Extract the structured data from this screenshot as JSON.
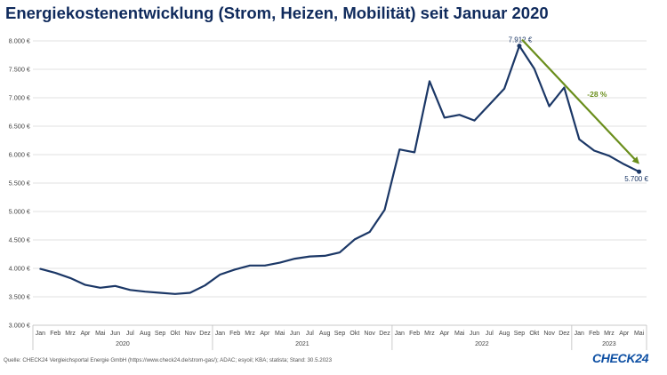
{
  "title": "Energiekostenentwicklung (Strom, Heizen, Mobilität) seit Januar 2020",
  "source": "Quelle: CHECK24 Vergleichsportal Energie GmbH (https://www.check24.de/strom-gas/); ADAC; esyoil; KBA; statista; Stand: 30.5.2023",
  "logo": "CHECK24",
  "colors": {
    "line": "#1b3766",
    "arrow": "#6a8e1c",
    "title": "#0f2a5c",
    "grid": "#d9d9d9"
  },
  "chart_data": {
    "type": "line",
    "title": "Energiekostenentwicklung (Strom, Heizen, Mobilität) seit Januar 2020",
    "ylim": [
      3000,
      8000
    ],
    "yticks": [
      3000,
      3500,
      4000,
      4500,
      5000,
      5500,
      6000,
      6500,
      7000,
      7500,
      8000
    ],
    "ytick_labels": [
      "3.000 €",
      "3.500 €",
      "4.000 €",
      "4.500 €",
      "5.000 €",
      "5.500 €",
      "6.000 €",
      "6.500 €",
      "7.000 €",
      "7.500 €",
      "8.000 €"
    ],
    "grid": true,
    "x": [
      "Jan",
      "Feb",
      "Mrz",
      "Apr",
      "Mai",
      "Jun",
      "Jul",
      "Aug",
      "Sep",
      "Okt",
      "Nov",
      "Dez",
      "Jan",
      "Feb",
      "Mrz",
      "Apr",
      "Mai",
      "Jun",
      "Jul",
      "Aug",
      "Sep",
      "Okt",
      "Nov",
      "Dez",
      "Jan",
      "Feb",
      "Mrz",
      "Apr",
      "Mai",
      "Jun",
      "Jul",
      "Aug",
      "Sep",
      "Okt",
      "Nov",
      "Dez",
      "Jan",
      "Feb",
      "Mrz",
      "Apr",
      "Mai"
    ],
    "year_groups": [
      {
        "label": "2020",
        "count": 12
      },
      {
        "label": "2021",
        "count": 12
      },
      {
        "label": "2022",
        "count": 12
      },
      {
        "label": "2023",
        "count": 5
      }
    ],
    "series": [
      {
        "values": [
          3990,
          3920,
          3830,
          3710,
          3660,
          3690,
          3620,
          3590,
          3570,
          3550,
          3570,
          3700,
          3890,
          3980,
          4050,
          4050,
          4100,
          4170,
          4210,
          4220,
          4280,
          4510,
          4640,
          5030,
          6090,
          6040,
          7290,
          6650,
          6700,
          6600,
          6880,
          7160,
          7912,
          7510,
          6850,
          7180,
          6270,
          6070,
          5980,
          5830,
          5700
        ]
      }
    ],
    "annotations": [
      {
        "label": "7.912 €",
        "index": 32
      },
      {
        "label": "5.700 €",
        "index": 40
      },
      {
        "label": "-28 %",
        "type": "arrow",
        "from_index": 32,
        "to_index": 40
      }
    ]
  }
}
